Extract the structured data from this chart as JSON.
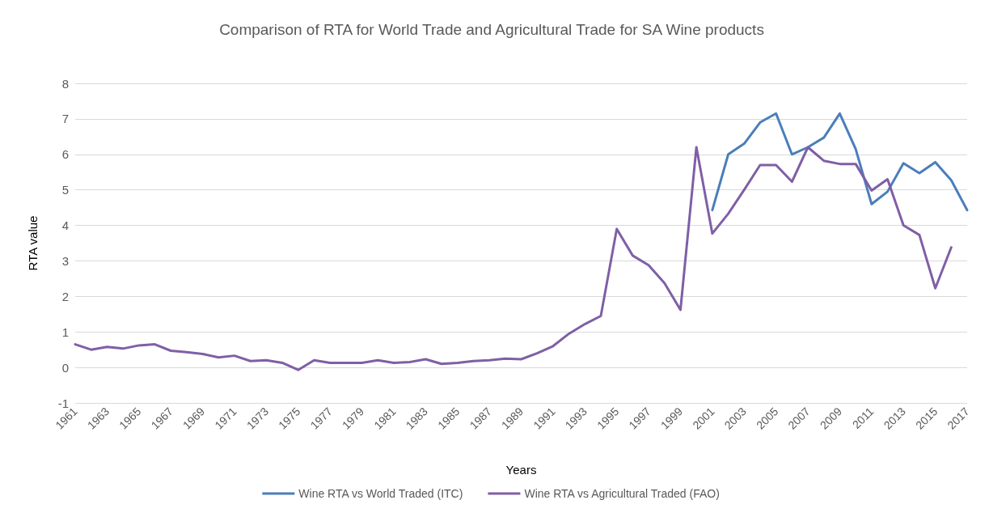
{
  "chart_data": {
    "type": "line",
    "title": "Comparison of RTA for World Trade and Agricultural Trade for SA Wine products",
    "xlabel": "Years",
    "ylabel": "RTA value",
    "categories": [
      "1961",
      null,
      "1963",
      null,
      "1965",
      null,
      "1967",
      null,
      "1969",
      null,
      "1971",
      null,
      "1973",
      null,
      "1975",
      null,
      "1977",
      null,
      "1979",
      null,
      "1981",
      null,
      "1983",
      null,
      "1985",
      null,
      "1987",
      null,
      "1989",
      null,
      "1991",
      null,
      "1993",
      null,
      "1995",
      null,
      "1997",
      null,
      "1999",
      null,
      "2001",
      null,
      "2003",
      null,
      "2005",
      null,
      "2007",
      null,
      "2009",
      null,
      "2011",
      null,
      "2013",
      null,
      "2015",
      null,
      "2017"
    ],
    "series": [
      {
        "name": "Wine RTA vs World Traded (ITC)",
        "color": "#4a7ebb",
        "values": [
          null,
          null,
          null,
          null,
          null,
          null,
          null,
          null,
          null,
          null,
          null,
          null,
          null,
          null,
          null,
          null,
          null,
          null,
          null,
          null,
          null,
          null,
          null,
          null,
          null,
          null,
          null,
          null,
          null,
          null,
          null,
          null,
          null,
          null,
          null,
          null,
          null,
          null,
          null,
          null,
          4.43,
          6.0,
          6.3,
          6.9,
          7.15,
          6.0,
          6.2,
          6.47,
          7.15,
          6.15,
          4.6,
          4.95,
          5.75,
          5.47,
          5.78,
          5.27,
          4.43
        ]
      },
      {
        "name": "Wine RTA vs Agricultural Traded (FAO)",
        "color": "#7f5fa6",
        "values": [
          0.65,
          0.5,
          0.58,
          0.53,
          0.62,
          0.65,
          0.47,
          0.43,
          0.38,
          0.28,
          0.33,
          0.18,
          0.2,
          0.13,
          -0.07,
          0.2,
          0.13,
          0.13,
          0.13,
          0.2,
          0.13,
          0.15,
          0.23,
          0.1,
          0.13,
          0.18,
          0.2,
          0.25,
          0.23,
          0.4,
          0.6,
          0.95,
          1.22,
          1.45,
          3.9,
          3.15,
          2.88,
          2.37,
          1.62,
          6.2,
          3.77,
          4.33,
          5.0,
          5.7,
          5.7,
          5.23,
          6.2,
          5.82,
          5.73,
          5.73,
          4.98,
          5.3,
          4.0,
          3.73,
          2.23,
          3.38,
          null
        ]
      }
    ],
    "ylim": [
      -1,
      8
    ],
    "yticks": [
      -1,
      0,
      1,
      2,
      3,
      4,
      5,
      6,
      7,
      8
    ],
    "grid": "y",
    "legend": "bottom",
    "marker": "none",
    "line_style": "solid"
  }
}
